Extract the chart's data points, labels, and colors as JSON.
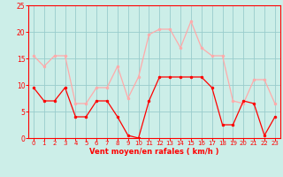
{
  "hours": [
    0,
    1,
    2,
    3,
    4,
    5,
    6,
    7,
    8,
    9,
    10,
    11,
    12,
    13,
    14,
    15,
    16,
    17,
    18,
    19,
    20,
    21,
    22,
    23
  ],
  "wind_avg": [
    9.5,
    7,
    7,
    9.5,
    4,
    4,
    7,
    7,
    4,
    0.5,
    0,
    7,
    11.5,
    11.5,
    11.5,
    11.5,
    11.5,
    9.5,
    2.5,
    2.5,
    7,
    6.5,
    0.5,
    4
  ],
  "wind_gust": [
    15.5,
    13.5,
    15.5,
    15.5,
    6.5,
    6.5,
    9.5,
    9.5,
    13.5,
    7.5,
    11.5,
    19.5,
    20.5,
    20.5,
    17,
    22,
    17,
    15.5,
    15.5,
    7,
    6.5,
    11,
    11,
    6.5
  ],
  "avg_color": "#ff0000",
  "gust_color": "#ffaaaa",
  "bg_color": "#cceee8",
  "grid_color": "#99cccc",
  "axis_color": "#ff0000",
  "xlabel": "Vent moyen/en rafales ( km/h )",
  "ylim": [
    0,
    25
  ],
  "yticks": [
    0,
    5,
    10,
    15,
    20,
    25
  ],
  "xticks": [
    0,
    1,
    2,
    3,
    4,
    5,
    6,
    7,
    8,
    9,
    10,
    11,
    12,
    13,
    14,
    15,
    16,
    17,
    18,
    19,
    20,
    21,
    22,
    23
  ]
}
